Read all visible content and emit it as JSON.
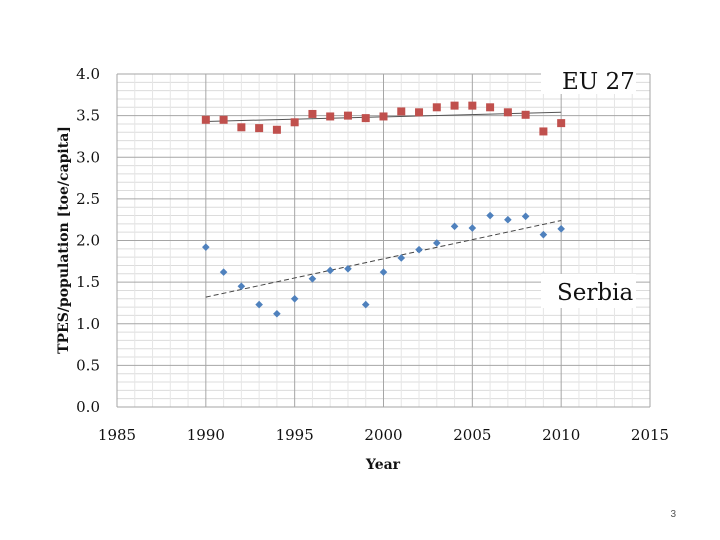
{
  "page": {
    "number": "3"
  },
  "chart_data": {
    "type": "scatter",
    "title": "",
    "xlabel": "Year",
    "ylabel": "TPES/population [toe/capita]",
    "xlim": [
      1985,
      2015
    ],
    "ylim": [
      0,
      4
    ],
    "x_ticks": [
      "1985",
      "1990",
      "1995",
      "2000",
      "2005",
      "2010",
      "2015"
    ],
    "y_ticks": [
      "0.0",
      "0.5",
      "1.0",
      "1.5",
      "2.0",
      "2.5",
      "3.0",
      "3.5",
      "4.0"
    ],
    "grid": true,
    "series": [
      {
        "name": "EU 27",
        "marker": "square",
        "color": "#c0504d",
        "x": [
          1990,
          1991,
          1992,
          1993,
          1994,
          1995,
          1996,
          1997,
          1998,
          1999,
          2000,
          2001,
          2002,
          2003,
          2004,
          2005,
          2006,
          2007,
          2008,
          2009,
          2010
        ],
        "values": [
          3.45,
          3.45,
          3.36,
          3.35,
          3.33,
          3.42,
          3.52,
          3.49,
          3.5,
          3.47,
          3.49,
          3.55,
          3.54,
          3.6,
          3.62,
          3.62,
          3.6,
          3.54,
          3.51,
          3.31,
          3.41
        ],
        "trendline": {
          "style": "solid",
          "color": "#555555",
          "x": [
            1990,
            2010
          ],
          "y": [
            3.43,
            3.54
          ]
        }
      },
      {
        "name": "Serbia",
        "marker": "diamond",
        "color": "#4f81bd",
        "x": [
          1990,
          1991,
          1992,
          1993,
          1994,
          1995,
          1996,
          1997,
          1998,
          1999,
          2000,
          2001,
          2002,
          2003,
          2004,
          2005,
          2006,
          2007,
          2008,
          2009,
          2010
        ],
        "values": [
          1.92,
          1.62,
          1.45,
          1.23,
          1.12,
          1.3,
          1.54,
          1.64,
          1.66,
          1.23,
          1.62,
          1.79,
          1.89,
          1.97,
          2.17,
          2.15,
          2.3,
          2.25,
          2.29,
          2.07,
          2.14
        ],
        "trendline": {
          "style": "dashed",
          "color": "#444444",
          "x": [
            1990,
            2010
          ],
          "y": [
            1.32,
            2.24
          ]
        }
      }
    ]
  }
}
